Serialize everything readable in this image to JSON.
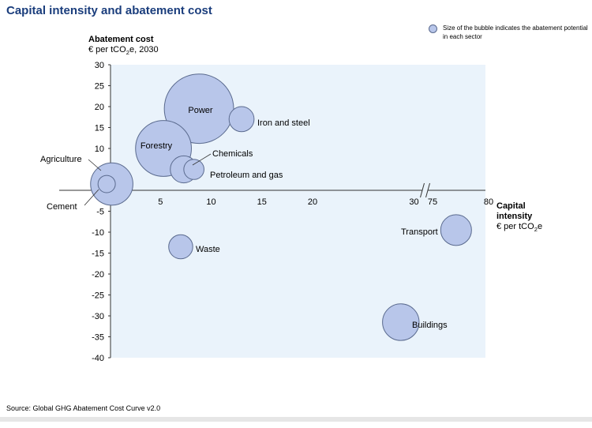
{
  "title": "Capital intensity and abatement cost",
  "legend_text": "Size of the bubble indicates the abatement potential in each sector",
  "ylabel": {
    "bold": "Abatement cost",
    "unit_prefix": "€ per tCO",
    "unit_sub": "2",
    "unit_suffix": "e, 2030"
  },
  "xlabel": {
    "bold1": "Capital",
    "bold2": "intensity",
    "unit_prefix": "€ per tCO",
    "unit_sub": "2",
    "unit_suffix": "e"
  },
  "source": "Source: Global GHG Abatement Cost Curve v2.0",
  "colors": {
    "bubble_fill": "#b8c6ea",
    "bubble_stroke": "#5a6a8e",
    "plot_bg": "#eaf3fb",
    "title": "#1a3d7c"
  },
  "chart_data": {
    "type": "scatter",
    "title": "Capital intensity and abatement cost",
    "xlabel": "Capital intensity € per tCO2e",
    "ylabel": "Abatement cost € per tCO2e, 2030",
    "ylim": [
      -40,
      30
    ],
    "xlim": [
      0,
      80
    ],
    "x_axis_break": [
      30,
      75
    ],
    "x_ticks": [
      5,
      10,
      15,
      20,
      30,
      75,
      80
    ],
    "y_ticks": [
      30,
      25,
      20,
      15,
      10,
      5,
      0,
      -5,
      -10,
      -15,
      -20,
      -25,
      -30,
      -35,
      -40
    ],
    "y_tick_labels": [
      "30",
      "25",
      "20",
      "15",
      "10",
      "5",
      "",
      "-5",
      "-10",
      "-15",
      "-20",
      "-25",
      "-30",
      "-35",
      "-40"
    ],
    "grid": false,
    "legend_position": "top-right",
    "points": [
      {
        "name": "Power",
        "x": 8.8,
        "y": 19.5,
        "size": 3.6,
        "label_inside": true
      },
      {
        "name": "Iron and steel",
        "x": 13.0,
        "y": 17.0,
        "size": 1.3,
        "label_inside": false
      },
      {
        "name": "Forestry",
        "x": 5.3,
        "y": 10.0,
        "size": 2.9,
        "label_inside": true
      },
      {
        "name": "Chemicals",
        "x": 7.3,
        "y": 5.0,
        "size": 1.4,
        "label_inside": false
      },
      {
        "name": "Petroleum and gas",
        "x": 8.3,
        "y": 5.0,
        "size": 1.05,
        "label_inside": false
      },
      {
        "name": "Agriculture",
        "x": 0.2,
        "y": 1.5,
        "size": 2.2,
        "label_inside": false
      },
      {
        "name": "Cement",
        "x": -0.3,
        "y": 1.5,
        "size": 0.9,
        "label_inside": false
      },
      {
        "name": "Waste",
        "x": 7.0,
        "y": -13.5,
        "size": 1.25,
        "label_inside": false
      },
      {
        "name": "Transport",
        "x": 77.1,
        "y": -9.5,
        "size": 1.6,
        "label_inside": false
      },
      {
        "name": "Buildings",
        "x": 28.7,
        "y": -31.5,
        "size": 1.9,
        "label_inside": false
      }
    ]
  }
}
